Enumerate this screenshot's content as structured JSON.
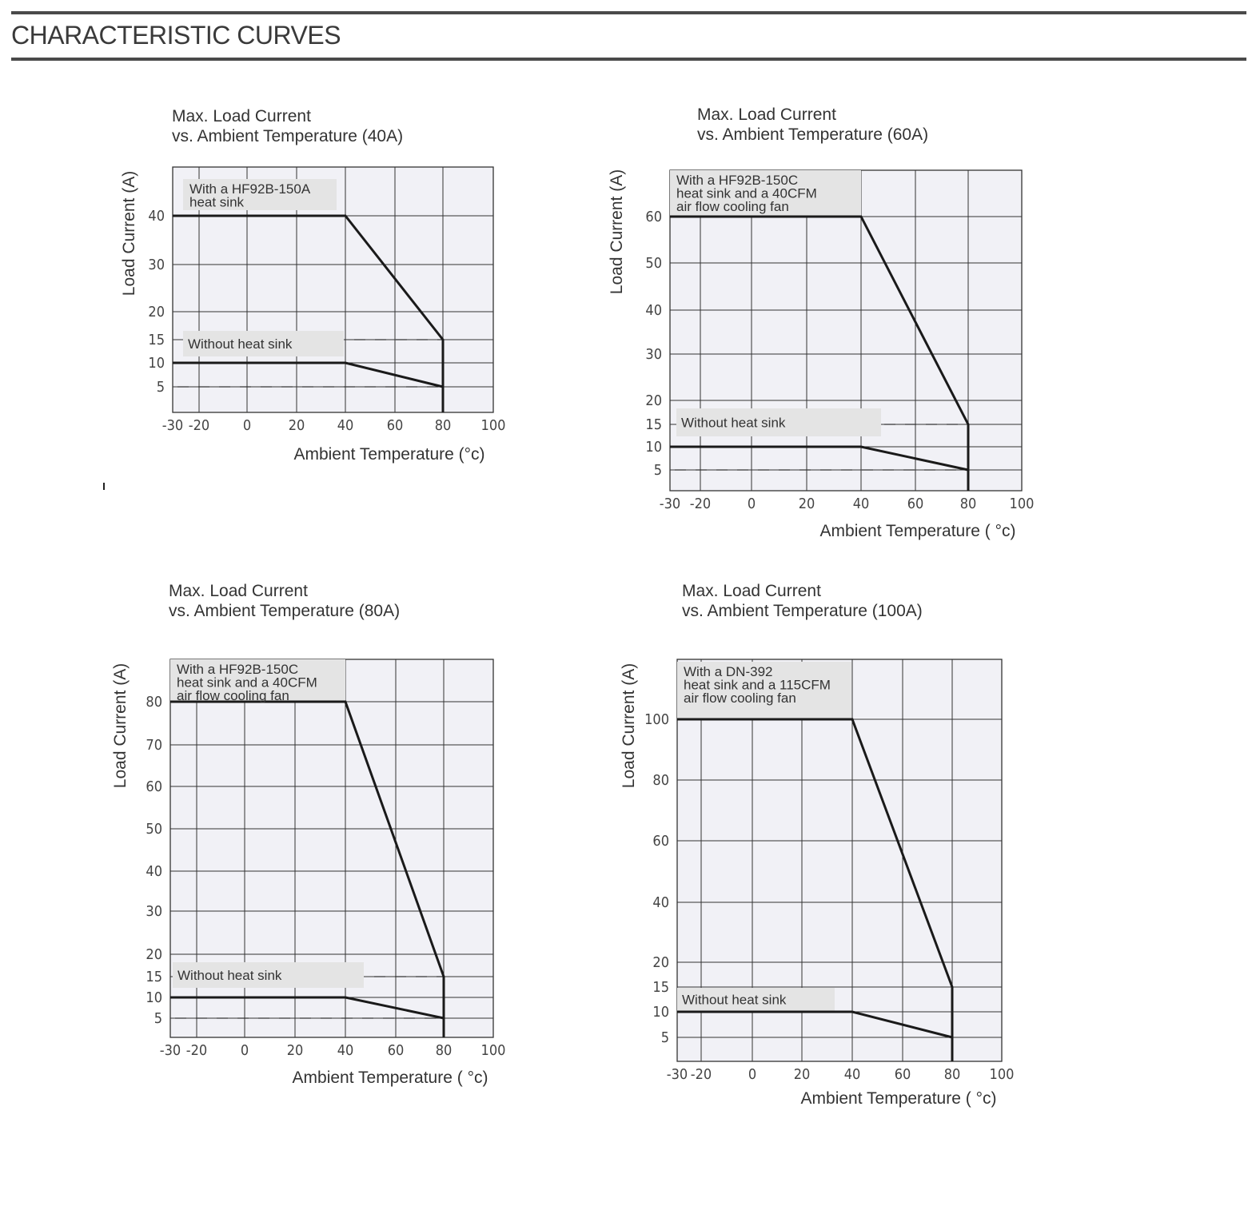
{
  "page": {
    "title": "CHARACTERISTIC CURVES"
  },
  "chart_data": [
    {
      "type": "line",
      "title": "Max. Load Current\nvs. Ambient Temperature  (40A)",
      "title_lines": [
        "Max. Load Current",
        "vs. Ambient Temperature  (40A)"
      ],
      "xlabel": "Ambient Temperature  (°c)",
      "ylabel": "Load Current (A)",
      "xlim": [
        -30,
        100
      ],
      "ylim": [
        0,
        50
      ],
      "x_ticks": [
        -30,
        -20,
        0,
        20,
        40,
        60,
        80,
        100
      ],
      "y_ticks": [
        5,
        10,
        15,
        20,
        30,
        40
      ],
      "grid": true,
      "series": [
        {
          "name": "With a HF92B-150A heat sink",
          "label_lines": [
            "With a HF92B-150A",
            "heat sink"
          ],
          "x": [
            -30,
            40,
            80,
            80
          ],
          "y": [
            40,
            40,
            15,
            0
          ]
        },
        {
          "name": "Without heat sink",
          "label_lines": [
            "Without heat sink"
          ],
          "x": [
            -30,
            40,
            80
          ],
          "y": [
            10,
            10,
            5
          ]
        }
      ],
      "dashed_levels": [
        15,
        5
      ]
    },
    {
      "type": "line",
      "title": "Max. Load Current\nvs. Ambient Temperature (60A)",
      "title_lines": [
        "Max. Load Current",
        "vs. Ambient Temperature (60A)"
      ],
      "xlabel": "Ambient Temperature ( °c)",
      "ylabel": "Load  Current (A)",
      "xlim": [
        -30,
        100
      ],
      "ylim": [
        0,
        70
      ],
      "x_ticks": [
        -30,
        -20,
        0,
        20,
        40,
        60,
        80,
        100
      ],
      "y_ticks": [
        5,
        10,
        15,
        20,
        30,
        40,
        50,
        60
      ],
      "grid": true,
      "series": [
        {
          "name": "With a HF92B-150C heat sink and a 40CFM air flow cooling fan",
          "label_lines": [
            "With a HF92B-150C",
            "heat sink  and a 40CFM",
            "air flow cooling fan"
          ],
          "x": [
            -30,
            40,
            80,
            80
          ],
          "y": [
            60,
            60,
            15,
            0
          ]
        },
        {
          "name": "Without heat sink",
          "label_lines": [
            "Without heat sink"
          ],
          "x": [
            -30,
            40,
            80
          ],
          "y": [
            10,
            10,
            5
          ]
        }
      ],
      "dashed_levels": [
        15,
        5
      ]
    },
    {
      "type": "line",
      "title": "Max. Load Current\nvs. Ambient Temperature (80A)",
      "title_lines": [
        "Max. Load Current",
        "vs. Ambient Temperature (80A)"
      ],
      "xlabel": "Ambient Temperature ( °c)",
      "ylabel": "Load  Current (A)",
      "xlim": [
        -30,
        100
      ],
      "ylim": [
        0,
        90
      ],
      "x_ticks": [
        -30,
        -20,
        0,
        20,
        40,
        60,
        80,
        100
      ],
      "y_ticks": [
        5,
        10,
        15,
        20,
        30,
        40,
        50,
        60,
        70,
        80
      ],
      "grid": true,
      "series": [
        {
          "name": "With a HF92B-150C heat sink and a 40CFM air flow cooling fan",
          "label_lines": [
            "With a HF92B-150C",
            "heat sink  and a 40CFM",
            "air flow cooling fan"
          ],
          "x": [
            -30,
            40,
            80,
            80
          ],
          "y": [
            80,
            80,
            15,
            0
          ]
        },
        {
          "name": "Without heat sink",
          "label_lines": [
            "Without heat sink"
          ],
          "x": [
            -30,
            40,
            80
          ],
          "y": [
            10,
            10,
            5
          ]
        }
      ],
      "dashed_levels": [
        15,
        5
      ]
    },
    {
      "type": "line",
      "title": "Max. Load Current\nvs. Ambient Temperature (100A)",
      "title_lines": [
        "Max. Load Current",
        "vs. Ambient Temperature (100A)"
      ],
      "xlabel": "Ambient Temperature ( °c)",
      "ylabel": "Load  Current (A)",
      "xlim": [
        -30,
        100
      ],
      "ylim": [
        0,
        120
      ],
      "x_ticks": [
        -30,
        -20,
        0,
        20,
        40,
        60,
        80,
        100
      ],
      "y_ticks": [
        5,
        10,
        15,
        20,
        40,
        60,
        80,
        100
      ],
      "grid": true,
      "series": [
        {
          "name": "With a DN-392 heat sink and a 115CFM air flow cooling fan",
          "label_lines": [
            "With a DN-392",
            "heat sink  and a 115CFM",
            "air flow cooling fan"
          ],
          "x": [
            -30,
            40,
            80,
            80
          ],
          "y": [
            100,
            100,
            15,
            0
          ]
        },
        {
          "name": "Without heat sink",
          "label_lines": [
            "Without heat sink"
          ],
          "x": [
            -30,
            40,
            80
          ],
          "y": [
            10,
            10,
            5
          ]
        }
      ],
      "dashed_levels": [
        15,
        5
      ]
    }
  ]
}
